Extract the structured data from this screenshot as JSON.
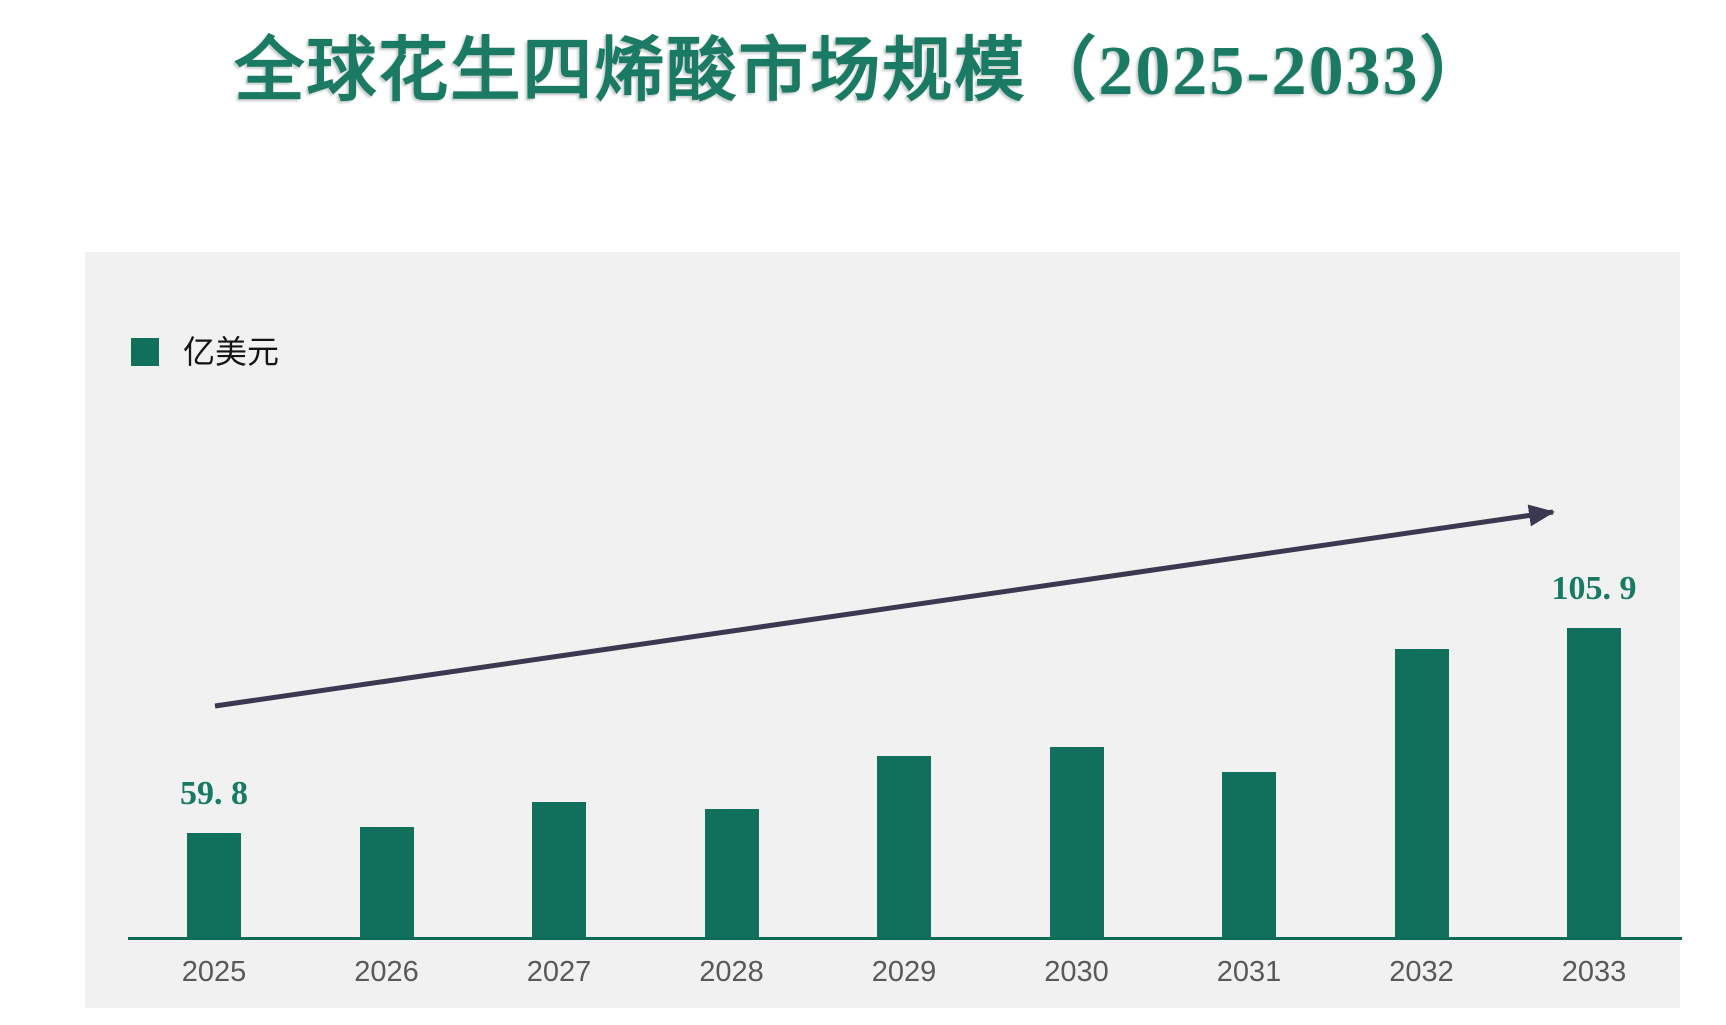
{
  "page": {
    "title": "全球花生四烯酸市场规模（2025-2033）"
  },
  "legend": {
    "label": "亿美元",
    "swatch_color": "#10705C"
  },
  "chart_data": {
    "type": "bar",
    "title": "全球花生四烯酸市场规模（2025-2033）",
    "unit_label": "亿美元",
    "categories": [
      "2025",
      "2026",
      "2027",
      "2028",
      "2029",
      "2030",
      "2031",
      "2032",
      "2033"
    ],
    "values": [
      59.8,
      61.1,
      66.8,
      65.2,
      77.1,
      79.1,
      73.5,
      101.2,
      105.9
    ],
    "point_labels": [
      "59. 8",
      null,
      null,
      null,
      null,
      null,
      null,
      null,
      "105. 9"
    ],
    "bar_color": "#10705C",
    "value_label_color": "#177A62",
    "axis_line_color": "#0E6B58",
    "tick_label_color": "#595959",
    "plot_background": "#F1F1F1",
    "legend_position": "top-left",
    "grid": false,
    "annotation": {
      "type": "trend-arrow",
      "color": "#3B3950"
    }
  }
}
